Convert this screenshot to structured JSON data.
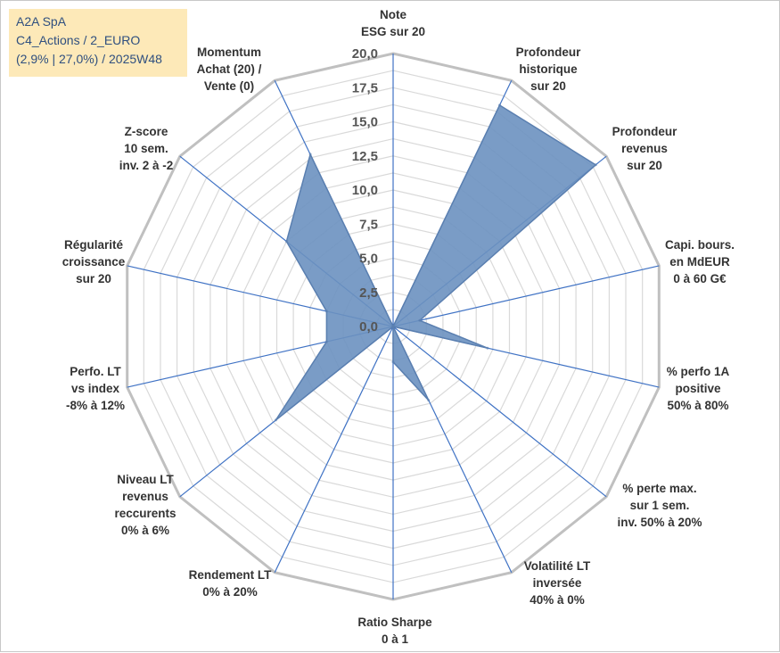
{
  "chart_data": {
    "type": "radar",
    "title_lines": [
      "A2A SpA",
      "C4_Actions / 2_EURO",
      "(2,9% | 27,0%) / 2025W48"
    ],
    "rmin": 0,
    "rmax": 20,
    "ticks": [
      "0,0",
      "2,5",
      "5,0",
      "7,5",
      "10,0",
      "12,5",
      "15,0",
      "17,5",
      "20,0"
    ],
    "tick_values": [
      0,
      2.5,
      5,
      7.5,
      10,
      12.5,
      15,
      17.5,
      20
    ],
    "grid_levels": 16,
    "colors": {
      "fill": "#6b91c0",
      "fill_stroke": "#5a7fb0",
      "spoke": "#3f72c4",
      "outer_ring": "#c0c0c0",
      "grid": "#d9d9d9",
      "title_bg": "#fde9b8",
      "title_text": "#2f4f7f"
    },
    "axes": [
      {
        "label": [
          "Note",
          "ESG sur 20"
        ],
        "value": 0
      },
      {
        "label": [
          "Profondeur",
          "historique",
          "sur 20"
        ],
        "value": 18
      },
      {
        "label": [
          "Profondeur",
          "revenus",
          "sur 20"
        ],
        "value": 19
      },
      {
        "label": [
          "Capi. bours.",
          "en MdEUR",
          "0 à 60 G€"
        ],
        "value": 2
      },
      {
        "label": [
          "% perfo 1A",
          "positive",
          "50% à 80%"
        ],
        "value": 7.1
      },
      {
        "label": [
          "% perte max.",
          "sur 1 sem.",
          "inv. 50% à 20%"
        ],
        "value": 0
      },
      {
        "label": [
          "Volatilité LT",
          "inversée",
          "40% à 0%"
        ],
        "value": 6
      },
      {
        "label": [
          "Ratio Sharpe",
          "0 à 1"
        ],
        "value": 2.6
      },
      {
        "label": [
          "Rendement LT",
          "0% à 20%"
        ],
        "value": 0
      },
      {
        "label": [
          "Niveau LT",
          "revenus",
          "reccurents",
          "0% à 6%"
        ],
        "value": 11
      },
      {
        "label": [
          "Perfo. LT",
          "vs index",
          "-8% à 12%"
        ],
        "value": 5
      },
      {
        "label": [
          "Régularité",
          "croissance",
          "sur 20"
        ],
        "value": 5
      },
      {
        "label": [
          "Z-score",
          "10 sem.",
          "inv. 2 à -2"
        ],
        "value": 10
      },
      {
        "label": [
          "Momentum",
          "Achat (20) /",
          "Vente (0)"
        ],
        "value": 14
      }
    ]
  }
}
